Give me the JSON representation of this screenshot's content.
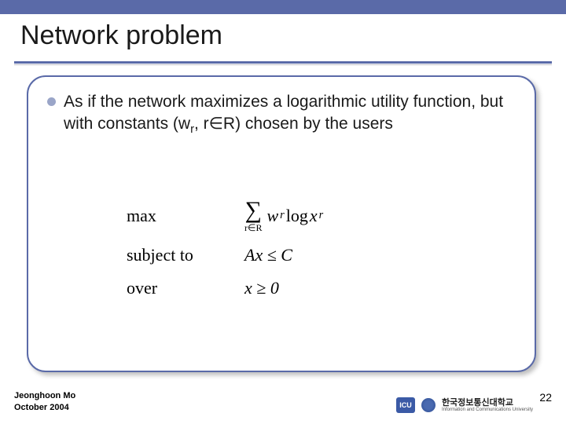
{
  "colors": {
    "accent": "#5a6aa8",
    "background": "#ffffff",
    "bullet": "#9aa5c8",
    "text": "#1a1a1a"
  },
  "title": "Network problem",
  "bullet": {
    "text_pre": "As if the network maximizes a logarithmic utility function, but with constants (w",
    "sub1": "r",
    "text_mid": ", r∈R) chosen by the users"
  },
  "math": {
    "row1_label": "max",
    "row1_sum_sub": "r∈R",
    "row1_term_w": "w",
    "row1_term_wsub": "r",
    "row1_term_log": " log ",
    "row1_term_x": "x",
    "row1_term_xsub": "r",
    "row2_label": "subject to",
    "row2_expr": "Ax ≤ C",
    "row3_label": "over",
    "row3_expr": "x ≥ 0"
  },
  "footer": {
    "author_line1": "Jeonghoon Mo",
    "author_line2": "October 2004",
    "page": "22",
    "logo_badge": "ICU",
    "logo_kr": "한국정보통신대학교",
    "logo_en": "Information and Communications University"
  }
}
